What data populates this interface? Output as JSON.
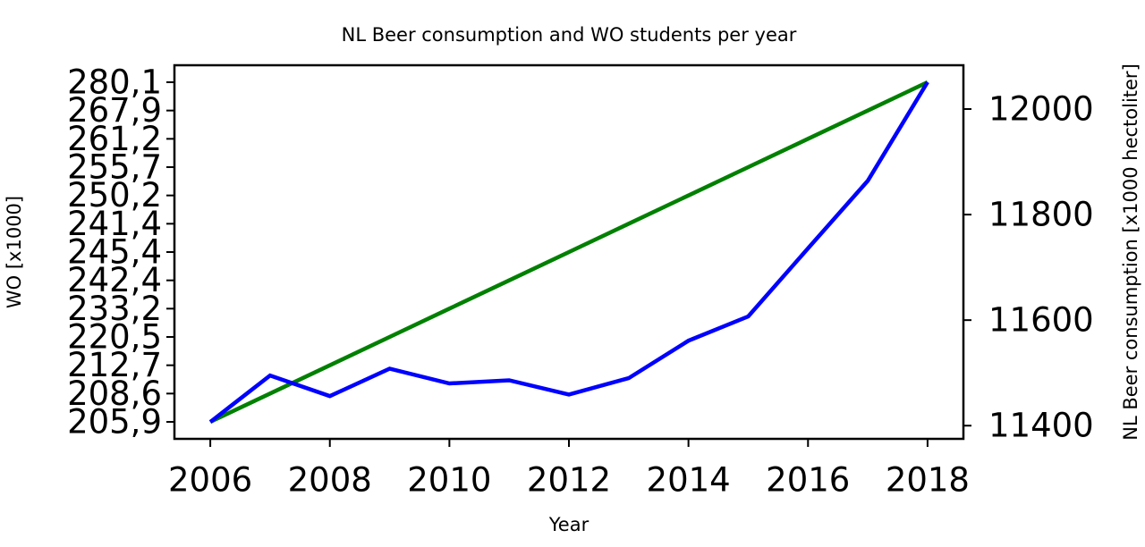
{
  "chart_data": {
    "type": "line",
    "title": "NL Beer consumption and WO students per year",
    "xlabel": "Year",
    "ylabel": "WO [x1000]",
    "y2label": "NL Beer consumption [x1000 hectoliter]",
    "x": [
      2006,
      2007,
      2008,
      2009,
      2010,
      2011,
      2012,
      2013,
      2014,
      2015,
      2016,
      2017,
      2018
    ],
    "xlim": [
      2005.4,
      2018.6
    ],
    "xticks": [
      2006,
      2008,
      2010,
      2012,
      2014,
      2016,
      2018
    ],
    "ylim": [
      -0.6,
      12.6
    ],
    "yticks": [
      {
        "value": 0,
        "label": "205,9"
      },
      {
        "value": 1,
        "label": "208,6"
      },
      {
        "value": 2,
        "label": "212,7"
      },
      {
        "value": 3,
        "label": "220,5"
      },
      {
        "value": 4,
        "label": "233,2"
      },
      {
        "value": 5,
        "label": "242,4"
      },
      {
        "value": 6,
        "label": "245,4"
      },
      {
        "value": 7,
        "label": "241,4"
      },
      {
        "value": 8,
        "label": "250,2"
      },
      {
        "value": 9,
        "label": "255,7"
      },
      {
        "value": 10,
        "label": "261,2"
      },
      {
        "value": 11,
        "label": "267,9"
      },
      {
        "value": 12,
        "label": "280,1"
      }
    ],
    "y2lim": [
      11375,
      12083
    ],
    "y2ticks": [
      11400,
      11600,
      11800,
      12000
    ],
    "ylabel_color": "#008000",
    "y2label_color": "#0000ff",
    "series": [
      {
        "color": "#008000",
        "axis": "y",
        "values": [
          0,
          1,
          2,
          3,
          4,
          5,
          6,
          7,
          8,
          9,
          10,
          11,
          12
        ]
      },
      {
        "color": "#0000ff",
        "axis": "y2",
        "values": [
          11407,
          11495,
          11456,
          11508,
          11480,
          11486,
          11459,
          11490,
          11561,
          11607,
          11736,
          11864,
          12051
        ]
      }
    ]
  }
}
